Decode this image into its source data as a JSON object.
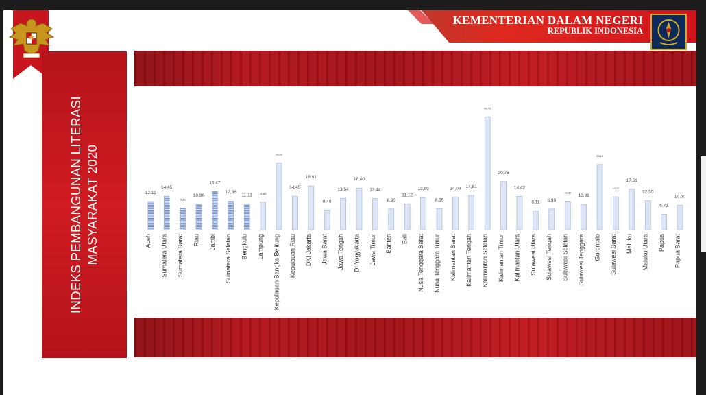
{
  "header": {
    "ministry_title": "KEMENTERIAN DALAM NEGERI",
    "ministry_subtitle": "REPUBLIK INDONESIA"
  },
  "side_panel": {
    "title_line1": "INDEKS PEMBANGUNAN LITERASI",
    "title_line2": "MASYARAKAT 2020"
  },
  "colors": {
    "accent_red": "#d01c22",
    "bar_fill_light": "#dde6f7",
    "bar_stroke": "#9aaed6",
    "bar_fill_striped": "#6f8fcf"
  },
  "chart_data": {
    "type": "bar",
    "categories": [
      "Aceh",
      "Sumatera Utara",
      "Sumatera Barat",
      "Riau",
      "Jambi",
      "Sumatera Selatan",
      "Bengkulu",
      "Lampung",
      "Kepulauan Bangka Belitung",
      "Kepulauan Riau",
      "DKI Jakarta",
      "Jawa Barat",
      "Jawa Tengah",
      "DI Yogyakarta",
      "Jawa Timur",
      "Banten",
      "Bali",
      "Nusa Tenggara Barat",
      "Nusa Tenggara Timur",
      "Kalimantan Barat",
      "Kalimantan Tengah",
      "Kalimantan Selatan",
      "Kalimantan Timur",
      "Kalimantan Utara",
      "Sulawesi Utara",
      "Sulawesi Tengah",
      "Sulawesi Selatan",
      "Sulawesi Tenggara",
      "Gorontalo",
      "Sulawesi Barat",
      "Maluku",
      "Maluku Utara",
      "Papua",
      "Papua Barat"
    ],
    "values": [
      12.11,
      14.45,
      9.35,
      10.96,
      16.47,
      12.36,
      11.11,
      11.88,
      28.83,
      14.45,
      18.91,
      8.48,
      13.54,
      18.0,
      13.44,
      8.9,
      11.12,
      13.89,
      8.95,
      14.04,
      14.81,
      48.7,
      20.78,
      14.42,
      8.11,
      8.9,
      12.32,
      10.91,
      28.18,
      14.21,
      17.51,
      12.55,
      6.71,
      10.5
    ],
    "labels": [
      "12,11",
      "14,45",
      "9,35",
      "10,96",
      "",
      "16,47",
      "12,36",
      "11,11",
      "11,88",
      "",
      "28,83",
      "14,45",
      "18,91",
      "8,48",
      "13,54",
      "18,00",
      "13,44",
      "8,90",
      "11,12",
      "13,89",
      "8,95",
      "14,04",
      "14,81",
      "48,70",
      "20,78",
      "14,42",
      "8,11",
      "8,90",
      "",
      "12,32",
      "10,91",
      "",
      "28,18",
      "14,21",
      "17,51",
      "12,55",
      "6,71",
      "10,50"
    ],
    "striped_count": 7,
    "ylim": [
      0,
      50
    ],
    "title": "",
    "xlabel": "",
    "ylabel": ""
  }
}
